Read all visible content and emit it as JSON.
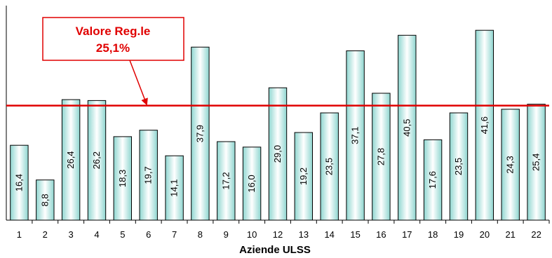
{
  "chart_data": {
    "type": "bar",
    "categories": [
      "1",
      "2",
      "3",
      "4",
      "5",
      "6",
      "7",
      "8",
      "9",
      "10",
      "12",
      "13",
      "14",
      "15",
      "16",
      "17",
      "18",
      "19",
      "20",
      "21",
      "22"
    ],
    "values": [
      16.4,
      8.8,
      26.4,
      26.2,
      18.3,
      19.7,
      14.1,
      37.9,
      17.2,
      16.0,
      29.0,
      19.2,
      23.5,
      37.1,
      27.8,
      40.5,
      17.6,
      23.5,
      41.6,
      24.3,
      25.4
    ],
    "value_labels": [
      "16,4",
      "8,8",
      "26,4",
      "26,2",
      "18,3",
      "19,7",
      "14,1",
      "37,9",
      "17,2",
      "16,0",
      "29,0",
      "19,2",
      "23,5",
      "37,1",
      "27,8",
      "40,5",
      "17,6",
      "23,5",
      "41,6",
      "24,3",
      "25,4"
    ],
    "xlabel": "Aziende ULSS",
    "ylabel": "",
    "ylim": [
      0,
      47
    ],
    "grid": false,
    "reference_line": {
      "value": 25.1,
      "label_line1": "Valore Reg.le",
      "label_line2": "25,1%",
      "color": "#e00000"
    },
    "bar_fill_center": "#ffffff",
    "bar_fill_edge": "#8fd6d0",
    "bar_stroke": "#000000"
  }
}
